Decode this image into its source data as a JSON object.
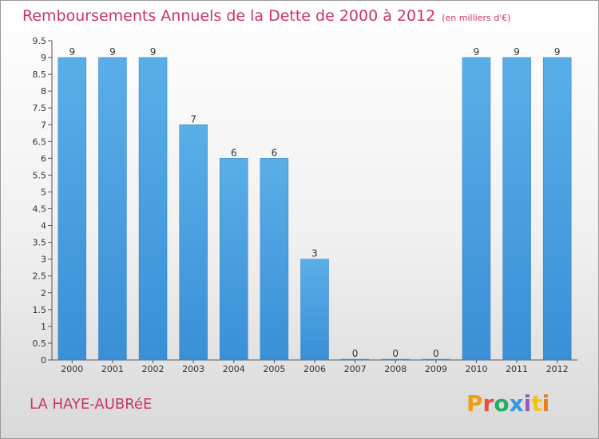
{
  "header": {
    "title": "Remboursements Annuels de la Dette de 2000 à 2012",
    "unit": "(en milliers d'€)"
  },
  "footer": {
    "commune": "LA HAYE-AUBRéE",
    "logo_text": "Proxiti"
  },
  "colors": {
    "title": "#cc3366",
    "bar": "#3a8fd6",
    "bar_light": "#5aaee8",
    "logo": [
      "#f39c12",
      "#e74c3c",
      "#27ae60",
      "#3498db",
      "#9b59b6",
      "#f1c40f",
      "#e67e22"
    ]
  },
  "chart_data": {
    "type": "bar",
    "title": "Remboursements Annuels de la Dette de 2000 à 2012",
    "subtitle": "(en milliers d'€)",
    "categories": [
      "2000",
      "2001",
      "2002",
      "2003",
      "2004",
      "2005",
      "2006",
      "2007",
      "2008",
      "2009",
      "2010",
      "2011",
      "2012"
    ],
    "values": [
      9,
      9,
      9,
      7,
      6,
      6,
      3,
      0,
      0,
      0,
      9,
      9,
      9
    ],
    "data_labels": [
      "9",
      "9",
      "9",
      "7",
      "6",
      "6",
      "3",
      "0",
      "0",
      "0",
      "9",
      "9",
      "9"
    ],
    "ylim": [
      0,
      9.5
    ],
    "yticks": [
      "0",
      "0.5",
      "1",
      "1.5",
      "2",
      "2.5",
      "3",
      "3.5",
      "4",
      "4.5",
      "5",
      "5.5",
      "6",
      "6.5",
      "7",
      "7.5",
      "8",
      "8.5",
      "9",
      "9.5"
    ],
    "grid": false,
    "legend": "none"
  }
}
